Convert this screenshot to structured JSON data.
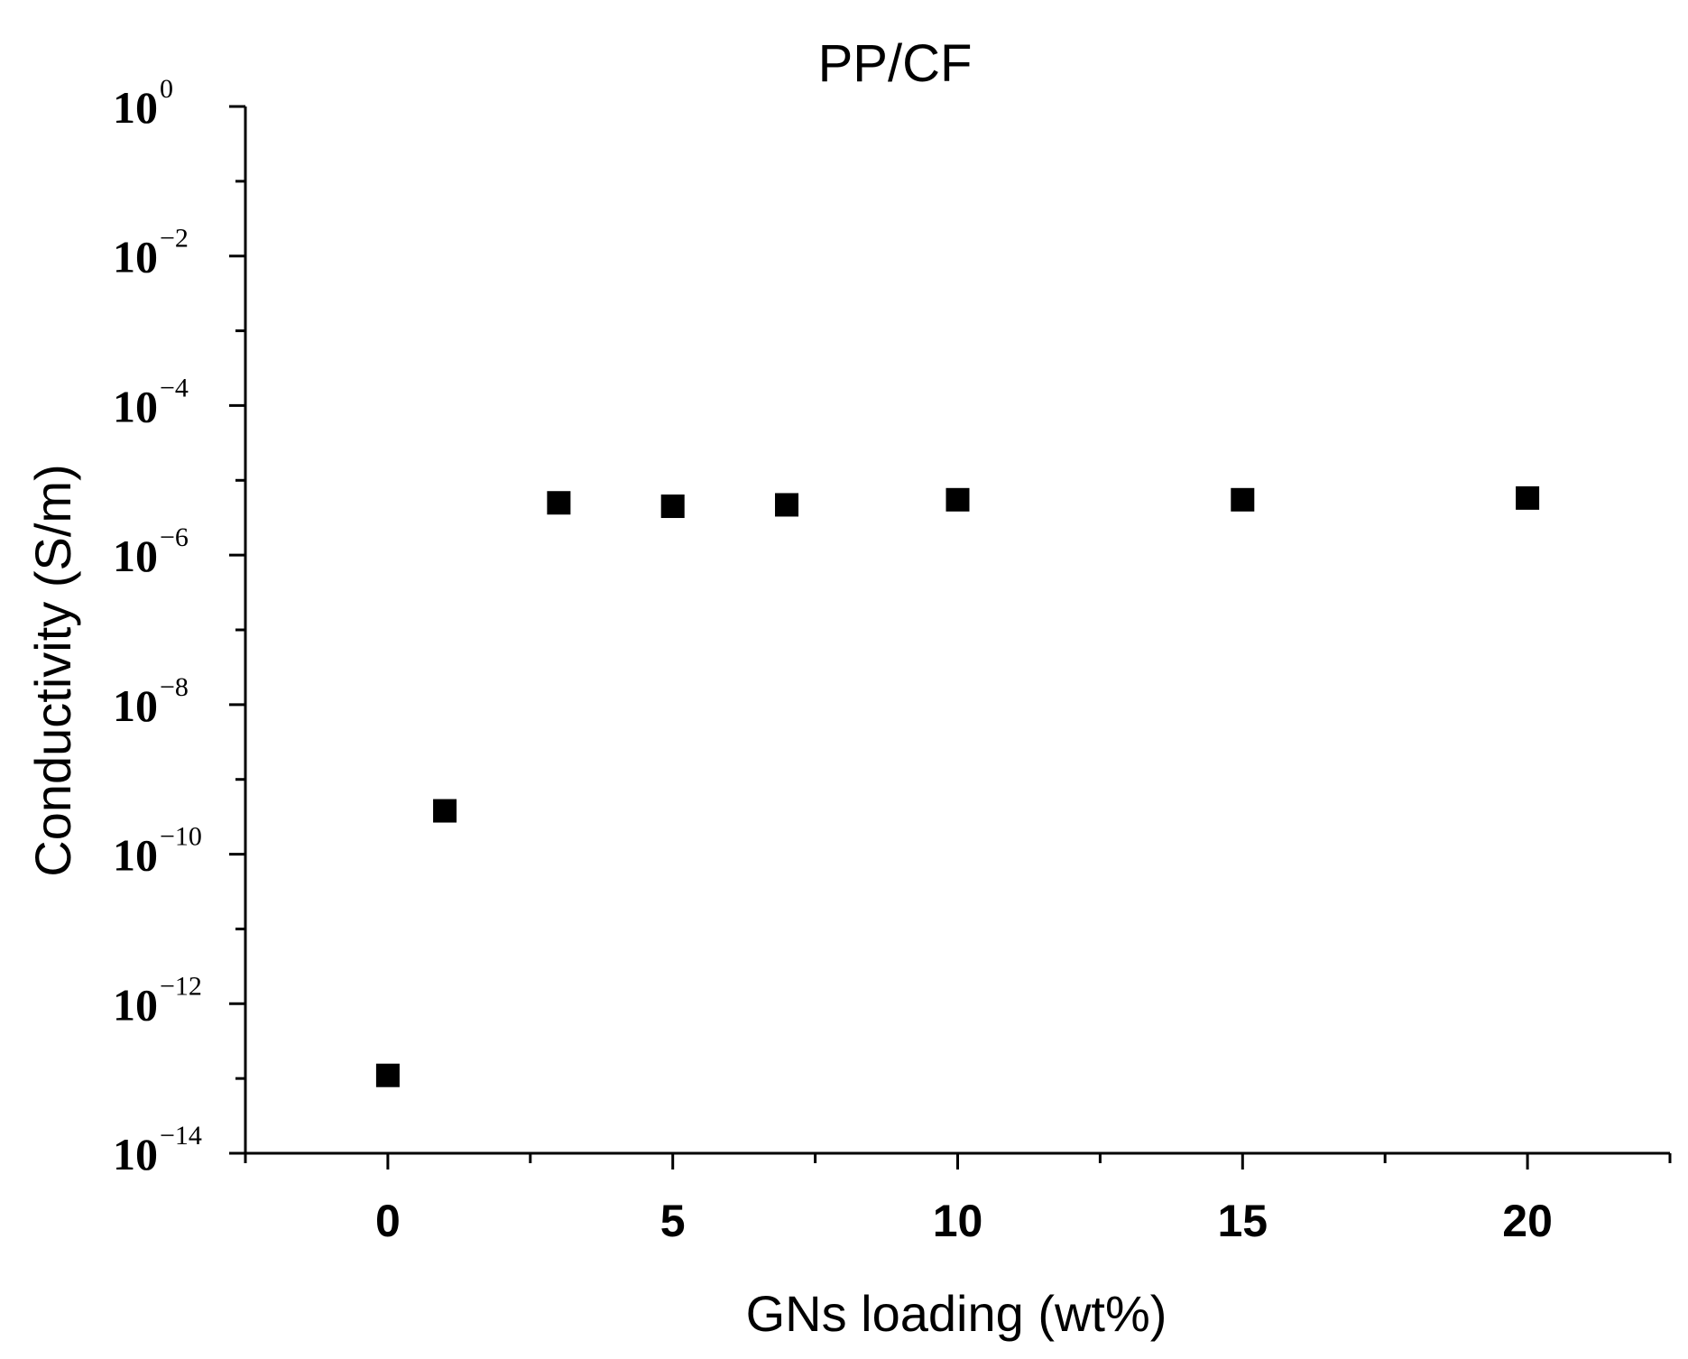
{
  "chart_data": {
    "type": "scatter",
    "title": "PP/CF",
    "xlabel": "GNs loading (wt%)",
    "ylabel": "Conductivity (S/m)",
    "xlim": [
      -2.5,
      22.5
    ],
    "ylim": [
      1e-14,
      1
    ],
    "yscale": "log",
    "grid": false,
    "legend": "none",
    "xticks": [
      0,
      5,
      10,
      15,
      20
    ],
    "xtick_labels": [
      "0",
      "5",
      "10",
      "15",
      "20"
    ],
    "yticks": [
      1e-14,
      1e-12,
      1e-10,
      1e-08,
      1e-06,
      0.0001,
      0.01,
      1
    ],
    "ytick_labels": [
      {
        "base": "10",
        "exp": "−14"
      },
      {
        "base": "10",
        "exp": "−12"
      },
      {
        "base": "10",
        "exp": "−10"
      },
      {
        "base": "10",
        "exp": "−8"
      },
      {
        "base": "10",
        "exp": "−6"
      },
      {
        "base": "10",
        "exp": "−4"
      },
      {
        "base": "10",
        "exp": "−2"
      },
      {
        "base": "10",
        "exp": "0"
      }
    ],
    "marker": "square",
    "color": "#000000",
    "series": [
      {
        "points": [
          {
            "x": 0,
            "y": 1.1e-13
          },
          {
            "x": 1,
            "y": 3.8e-10
          },
          {
            "x": 3,
            "y": 5e-06
          },
          {
            "x": 5,
            "y": 4.5e-06
          },
          {
            "x": 7,
            "y": 4.7e-06
          },
          {
            "x": 10,
            "y": 5.5e-06
          },
          {
            "x": 15,
            "y": 5.5e-06
          },
          {
            "x": 20,
            "y": 5.8e-06
          }
        ]
      }
    ]
  }
}
